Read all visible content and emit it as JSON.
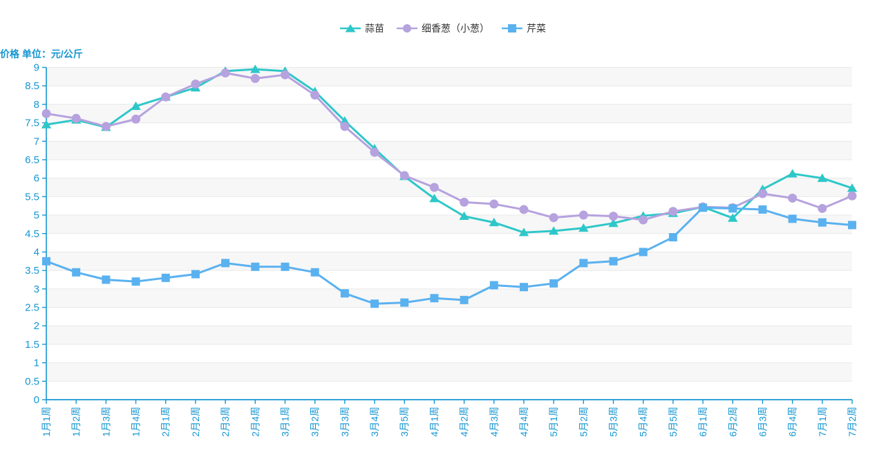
{
  "chart_data": {
    "type": "line",
    "title": "",
    "ylabel": "价格 单位：元/公斤",
    "xlabel": "",
    "ylim": [
      0,
      9
    ],
    "ytick_step": 0.5,
    "ytick_labels": [
      "9",
      "8.5",
      "8",
      "7.5",
      "7",
      "6.5",
      "6",
      "5.5",
      "5",
      "4.5",
      "4",
      "3.5",
      "3",
      "2.5",
      "2",
      "1.5",
      "1",
      "0.5",
      "0"
    ],
    "grid": true,
    "split_area": true,
    "legend_position": "top-center",
    "x_label_rotation_deg": 90,
    "categories": [
      "1月1周",
      "1月2周",
      "1月3周",
      "1月4周",
      "2月1周",
      "2月2周",
      "2月3周",
      "2月4周",
      "3月1周",
      "3月2周",
      "3月3周",
      "3月4周",
      "3月5周",
      "4月1周",
      "4月2周",
      "4月3周",
      "4月4周",
      "5月1周",
      "5月2周",
      "5月3周",
      "5月4周",
      "5月5周",
      "6月1周",
      "6月2周",
      "6月3周",
      "6月4周",
      "7月1周",
      "7月2周"
    ],
    "series": [
      {
        "name": "蒜苗",
        "marker": "triangle",
        "color": "#2ec7c9",
        "values": [
          7.45,
          7.58,
          7.38,
          7.95,
          8.2,
          8.45,
          8.9,
          8.95,
          8.9,
          8.35,
          7.55,
          6.8,
          6.05,
          5.45,
          4.97,
          4.8,
          4.53,
          4.57,
          4.65,
          4.78,
          4.98,
          5.05,
          5.22,
          4.92,
          5.7,
          6.12,
          6.0,
          5.73
        ]
      },
      {
        "name": "细香葱（小葱）",
        "marker": "circle",
        "color": "#b6a2de",
        "values": [
          7.75,
          7.62,
          7.4,
          7.6,
          8.2,
          8.55,
          8.85,
          8.7,
          8.8,
          8.25,
          7.4,
          6.7,
          6.07,
          5.75,
          5.35,
          5.3,
          5.15,
          4.93,
          5.0,
          4.97,
          4.87,
          5.1,
          5.22,
          5.2,
          5.58,
          5.46,
          5.18,
          5.52
        ]
      },
      {
        "name": "芹菜",
        "marker": "square",
        "color": "#5ab1ef",
        "values": [
          3.75,
          3.45,
          3.25,
          3.2,
          3.3,
          3.4,
          3.7,
          3.6,
          3.6,
          3.45,
          2.88,
          2.6,
          2.63,
          2.75,
          2.7,
          3.1,
          3.05,
          3.15,
          3.7,
          3.75,
          4.0,
          4.4,
          5.2,
          5.18,
          5.15,
          4.9,
          4.8,
          4.73
        ]
      }
    ],
    "colors": {
      "axis": "#1496d2",
      "grid_line": "#e8e8e8",
      "split_band": "#f7f7f7",
      "legend_text": "#333333",
      "background": "#ffffff"
    }
  }
}
